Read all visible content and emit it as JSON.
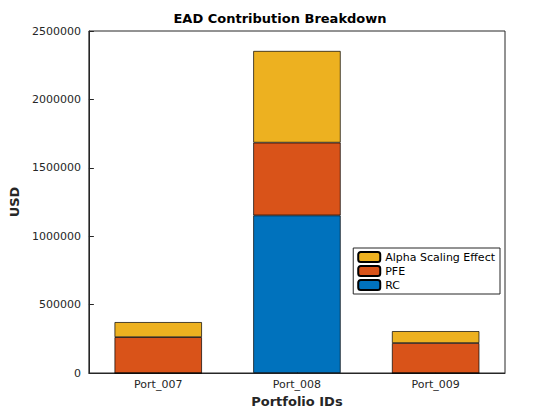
{
  "chart_data": {
    "type": "bar",
    "title": "EAD Contribution Breakdown",
    "x_label": "Portfolio IDs",
    "y_label": "USD",
    "categories": [
      "Port_007",
      "Port_008",
      "Port_009"
    ],
    "stacked": true,
    "series": [
      {
        "name": "RC",
        "color": "#0072bd",
        "values": [
          0,
          1152000,
          0
        ]
      },
      {
        "name": "PFE",
        "color": "#d95319",
        "values": [
          262000,
          532000,
          219000
        ]
      },
      {
        "name": "Alpha Scaling Effect",
        "color": "#edb120",
        "values": [
          110000,
          670000,
          87000
        ]
      }
    ],
    "ylim": [
      0,
      2500000
    ],
    "yticks": [
      0,
      500000,
      1000000,
      1500000,
      2000000,
      2500000
    ],
    "grid": false,
    "legend": "right"
  }
}
